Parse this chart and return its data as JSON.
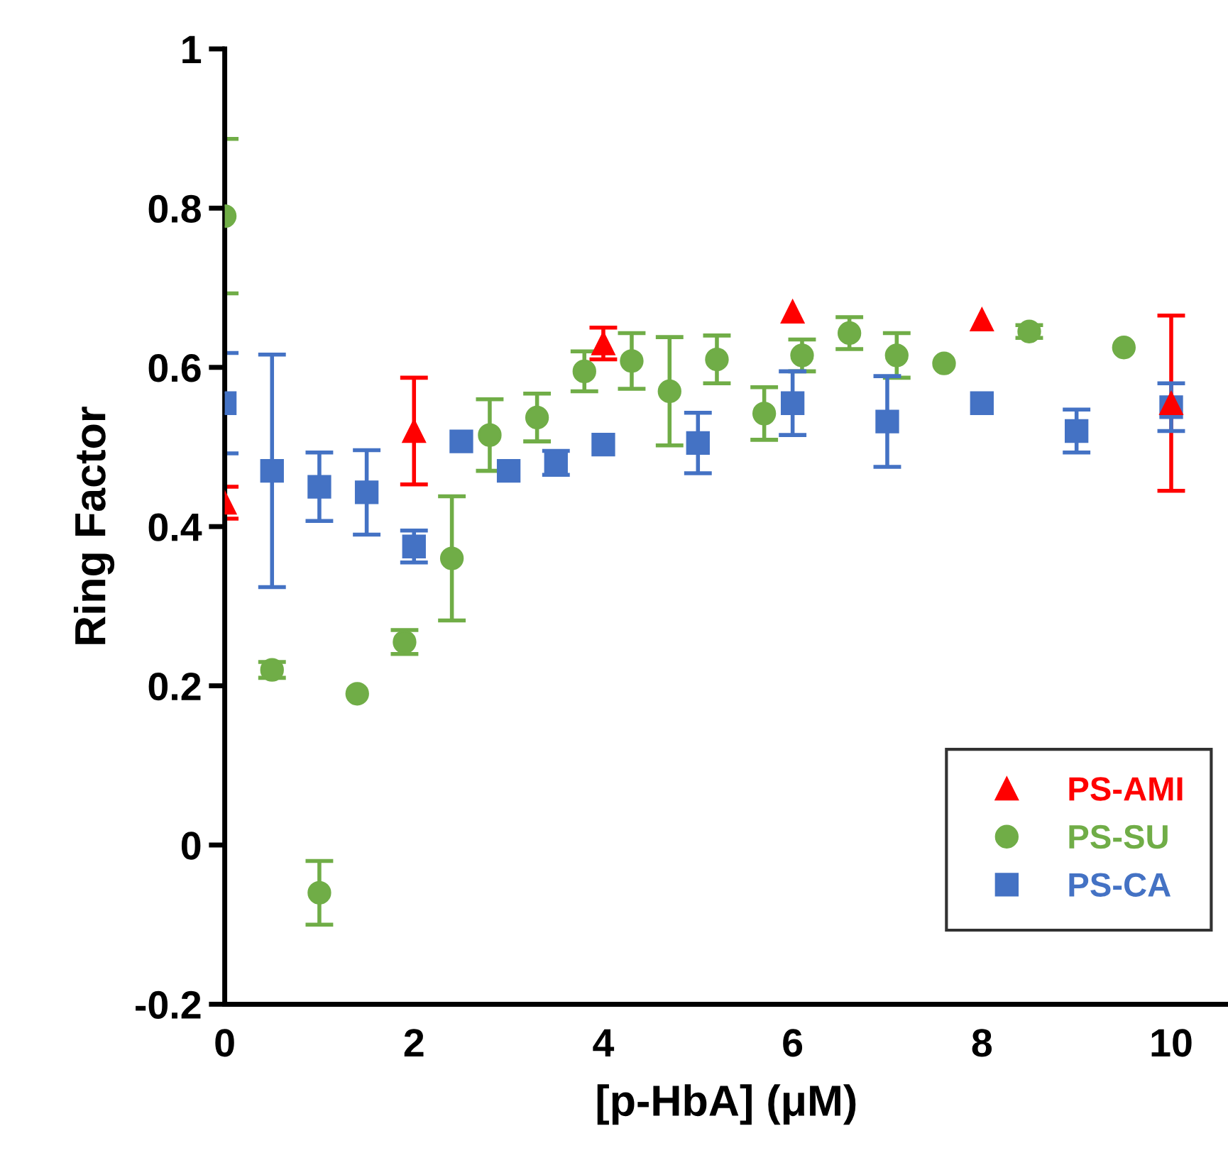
{
  "chart_data": {
    "type": "scatter",
    "xlabel": "[p-HbA] (μM)",
    "ylabel": "Ring Factor",
    "xlim": [
      0,
      10.6
    ],
    "xticks": [
      0,
      2,
      4,
      6,
      8,
      10
    ],
    "ylim": [
      -0.2,
      1
    ],
    "yticks": [
      -0.2,
      0,
      0.2,
      0.4,
      0.6,
      0.8,
      1
    ],
    "grid": false,
    "legend": "bottom right",
    "series": [
      {
        "name": "PS-AMI",
        "color": "#ff0000",
        "marker": "triangle",
        "x": [
          0,
          2,
          4,
          6,
          8,
          10
        ],
        "values": [
          0.43,
          0.52,
          0.63,
          0.67,
          0.66,
          0.555
        ],
        "errors": [
          0.02,
          0.067,
          0.02,
          null,
          null,
          0.11
        ]
      },
      {
        "name": "PS-SU",
        "color": "#70ad47",
        "marker": "circle",
        "x": [
          0,
          0.5,
          1,
          1.4,
          1.9,
          2.4,
          2.8,
          3.3,
          3.8,
          4.3,
          4.7,
          5.2,
          5.7,
          6.1,
          6.6,
          7.1,
          7.6,
          8.5,
          9.5
        ],
        "values": [
          0.79,
          0.22,
          -0.06,
          0.19,
          0.255,
          0.36,
          0.515,
          0.537,
          0.595,
          0.608,
          0.57,
          0.61,
          0.542,
          0.615,
          0.643,
          0.615,
          0.605,
          0.645,
          0.625
        ],
        "errors": [
          0.097,
          0.01,
          0.04,
          null,
          0.015,
          0.078,
          0.045,
          0.03,
          0.025,
          0.035,
          0.068,
          0.03,
          0.033,
          0.02,
          0.02,
          0.028,
          null,
          0.008,
          null
        ]
      },
      {
        "name": "PS-CA",
        "color": "#4472c4",
        "marker": "square",
        "x": [
          0,
          0.5,
          1,
          1.5,
          2,
          2.5,
          3,
          3.5,
          4,
          5,
          6,
          7,
          8,
          9,
          10
        ],
        "values": [
          0.555,
          0.47,
          0.45,
          0.443,
          0.375,
          0.507,
          0.47,
          0.48,
          0.503,
          0.505,
          0.555,
          0.532,
          0.555,
          0.52,
          0.55
        ],
        "errors": [
          0.063,
          0.146,
          0.043,
          0.053,
          0.02,
          null,
          null,
          0.015,
          null,
          0.038,
          0.04,
          0.057,
          null,
          0.027,
          0.03
        ]
      }
    ]
  }
}
